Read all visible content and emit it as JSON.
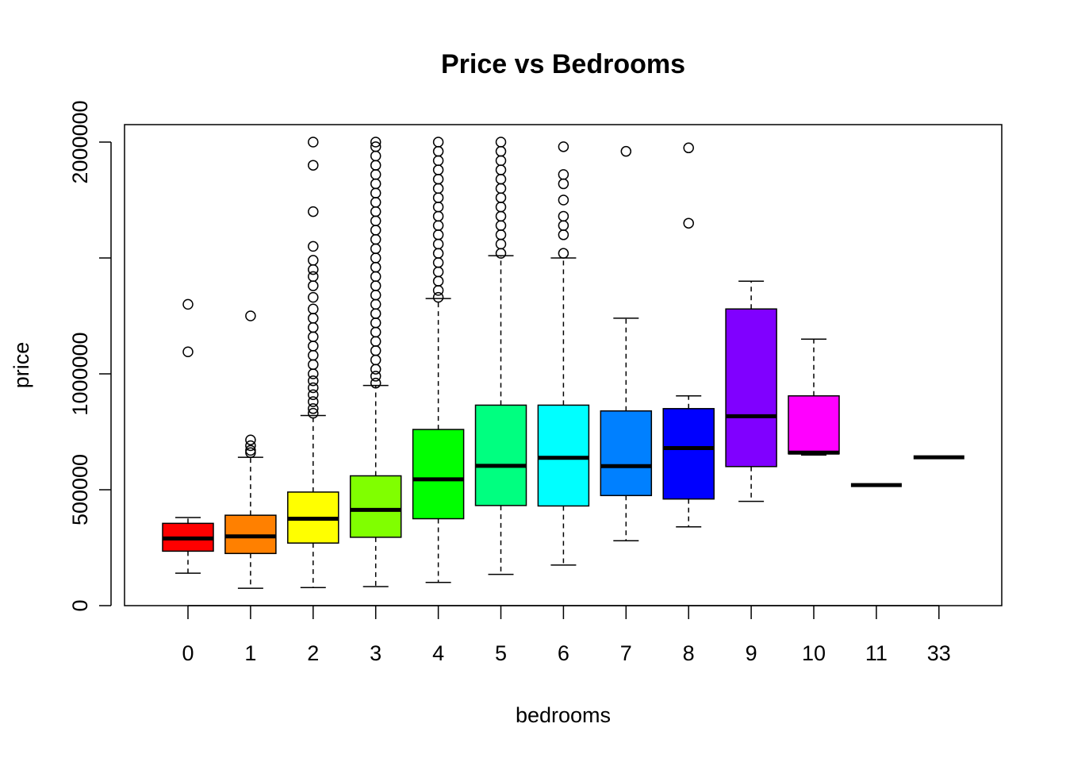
{
  "chart_data": {
    "type": "boxplot",
    "title": "Price vs Bedrooms",
    "xlabel": "bedrooms",
    "ylabel": "price",
    "ylim": [
      0,
      2000000
    ],
    "yticks": [
      0,
      500000,
      1000000,
      2000000
    ],
    "ytick_labels": [
      "0",
      "500000",
      "1000000",
      "2000000"
    ],
    "categories": [
      "0",
      "1",
      "2",
      "3",
      "4",
      "5",
      "6",
      "7",
      "8",
      "9",
      "10",
      "11",
      "33"
    ],
    "grid": false,
    "legend": "none",
    "boxes": [
      {
        "category": "0",
        "color": "#FF0000",
        "lower_whisker": 140000,
        "q1": 235000,
        "median": 290000,
        "q3": 355000,
        "upper_whisker": 380000,
        "outliers": [
          1300000,
          1095000
        ]
      },
      {
        "category": "1",
        "color": "#FF8000",
        "lower_whisker": 75000,
        "q1": 225000,
        "median": 299000,
        "q3": 390000,
        "upper_whisker": 640000,
        "outliers": [
          660000,
          670000,
          690000,
          715000,
          1250000
        ]
      },
      {
        "category": "2",
        "color": "#FFFF00",
        "lower_whisker": 78000,
        "q1": 270000,
        "median": 375000,
        "q3": 490000,
        "upper_whisker": 820000,
        "outliers": [
          830000,
          850000,
          880000,
          910000,
          940000,
          970000,
          1000000,
          1040000,
          1080000,
          1120000,
          1160000,
          1200000,
          1240000,
          1280000,
          1330000,
          1380000,
          1420000,
          1450000,
          1490000,
          1550000,
          1700000,
          1900000,
          2000000
        ]
      },
      {
        "category": "3",
        "color": "#80FF00",
        "lower_whisker": 82000,
        "q1": 295000,
        "median": 413000,
        "q3": 560000,
        "upper_whisker": 950000,
        "outliers": [
          960000,
          990000,
          1020000,
          1060000,
          1100000,
          1140000,
          1180000,
          1220000,
          1260000,
          1300000,
          1340000,
          1380000,
          1420000,
          1460000,
          1500000,
          1540000,
          1580000,
          1620000,
          1660000,
          1700000,
          1740000,
          1780000,
          1820000,
          1860000,
          1900000,
          1940000,
          1980000,
          2000000
        ]
      },
      {
        "category": "4",
        "color": "#00FF00",
        "lower_whisker": 100000,
        "q1": 375000,
        "median": 545000,
        "q3": 760000,
        "upper_whisker": 1325000,
        "outliers": [
          1330000,
          1360000,
          1400000,
          1440000,
          1480000,
          1520000,
          1560000,
          1600000,
          1640000,
          1680000,
          1720000,
          1760000,
          1800000,
          1840000,
          1880000,
          1920000,
          1960000,
          2000000
        ]
      },
      {
        "category": "5",
        "color": "#00FF80",
        "lower_whisker": 135000,
        "q1": 432000,
        "median": 603000,
        "q3": 865000,
        "upper_whisker": 1510000,
        "outliers": [
          1520000,
          1560000,
          1600000,
          1640000,
          1680000,
          1720000,
          1760000,
          1800000,
          1840000,
          1880000,
          1920000,
          1960000,
          2000000
        ]
      },
      {
        "category": "6",
        "color": "#00FFFF",
        "lower_whisker": 175000,
        "q1": 430000,
        "median": 638000,
        "q3": 865000,
        "upper_whisker": 1500000,
        "outliers": [
          1520000,
          1600000,
          1640000,
          1680000,
          1750000,
          1820000,
          1860000,
          1980000
        ]
      },
      {
        "category": "7",
        "color": "#0080FF",
        "lower_whisker": 280000,
        "q1": 475000,
        "median": 602000,
        "q3": 840000,
        "upper_whisker": 1240000,
        "outliers": [
          1960000
        ]
      },
      {
        "category": "8",
        "color": "#0000FF",
        "lower_whisker": 340000,
        "q1": 460000,
        "median": 680000,
        "q3": 850000,
        "upper_whisker": 905000,
        "outliers": [
          1650000,
          1975000
        ]
      },
      {
        "category": "9",
        "color": "#8000FF",
        "lower_whisker": 450000,
        "q1": 600000,
        "median": 817000,
        "q3": 1280000,
        "upper_whisker": 1400000,
        "outliers": []
      },
      {
        "category": "10",
        "color": "#FF00FF",
        "lower_whisker": 650000,
        "q1": 655000,
        "median": 660000,
        "q3": 905000,
        "upper_whisker": 1150000,
        "outliers": []
      },
      {
        "category": "11",
        "color": "#FF0080",
        "lower_whisker": 520000,
        "q1": 520000,
        "median": 520000,
        "q3": 520000,
        "upper_whisker": 520000,
        "outliers": []
      },
      {
        "category": "33",
        "color": "#FF0000",
        "lower_whisker": 640000,
        "q1": 640000,
        "median": 640000,
        "q3": 640000,
        "upper_whisker": 640000,
        "outliers": []
      }
    ]
  }
}
